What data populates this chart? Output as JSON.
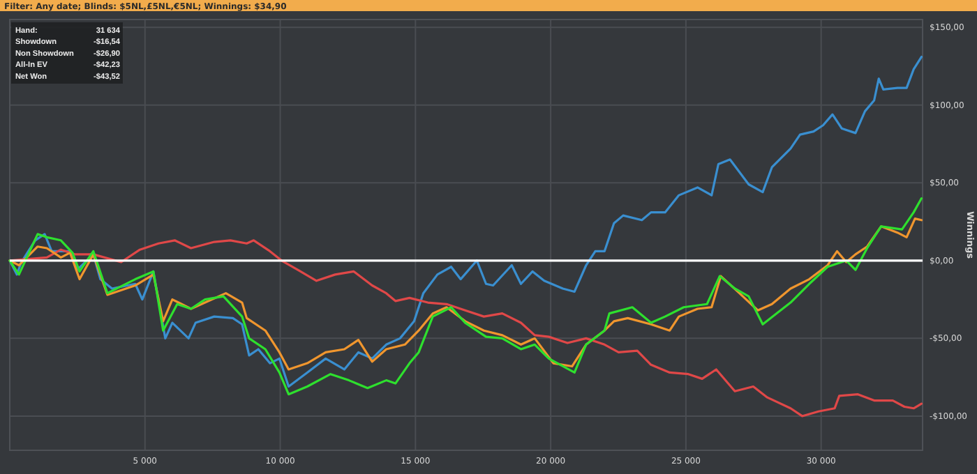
{
  "chart_data": {
    "type": "line",
    "title": "Filter: Any date; Blinds: $5NL,£5NL,€5NL; Winnings: $34,90",
    "ylabel": "Winnings",
    "annotations": [
      "Hand:",
      "31 634",
      "Showdown",
      "-$16,54",
      "Non Showdown",
      "-$26,90",
      "All-In EV",
      "-$42,23",
      "Net Won",
      "-$43,52"
    ],
    "xlim": [
      0,
      33750
    ],
    "ylim": [
      -122,
      155
    ],
    "xticks": [
      {
        "value": 5000,
        "label": "5 000"
      },
      {
        "value": 10000,
        "label": "10 000"
      },
      {
        "value": 15000,
        "label": "15 000"
      },
      {
        "value": 20000,
        "label": "20 000"
      },
      {
        "value": 25000,
        "label": "25 000"
      },
      {
        "value": 30000,
        "label": "30 000"
      }
    ],
    "yticks": [
      {
        "value": -100,
        "label": "-$100,00"
      },
      {
        "value": -50,
        "label": "-$50,00"
      },
      {
        "value": 0,
        "label": "$0,00"
      },
      {
        "value": 50,
        "label": "$50,00"
      },
      {
        "value": 100,
        "label": "$100,00"
      },
      {
        "value": 150,
        "label": "$150,00"
      }
    ],
    "grid": true,
    "ref_lines": [
      {
        "axis": "y",
        "value": 0,
        "label": null,
        "color": "#ffffff"
      }
    ],
    "series": [
      {
        "color": "#3a8fd0",
        "x": [
          0,
          260,
          430,
          940,
          1290,
          1550,
          2230,
          2490,
          3090,
          3350,
          3780,
          4640,
          4900,
          5310,
          5750,
          6010,
          6610,
          6870,
          7560,
          8250,
          8590,
          8850,
          9190,
          9620,
          9970,
          10310,
          11000,
          11680,
          12370,
          12890,
          13400,
          13920,
          14430,
          14950,
          15290,
          15810,
          16320,
          16670,
          17270,
          17610,
          17870,
          18560,
          18900,
          19330,
          19760,
          20450,
          20880,
          21310,
          21650,
          21990,
          22340,
          22680,
          23370,
          23710,
          24230,
          24740,
          25430,
          25950,
          26200,
          26630,
          27320,
          27840,
          28180,
          28870,
          29220,
          29720,
          30070,
          30420,
          30760,
          31270,
          31620,
          31960,
          32130,
          32300,
          32820,
          33160,
          33420,
          33710
        ],
        "values": [
          0,
          -9,
          -1,
          13,
          17,
          6,
          6,
          -6,
          4,
          -12,
          -18,
          -15,
          -25,
          -7,
          -50,
          -40,
          -50,
          -40,
          -36,
          -37,
          -41,
          -61,
          -57,
          -66,
          -63,
          -81,
          -72,
          -63,
          -70,
          -59,
          -63,
          -54,
          -50,
          -39,
          -21,
          -9,
          -4,
          -12,
          0,
          -15,
          -16,
          -3,
          -15,
          -7,
          -13,
          -18,
          -20,
          -3,
          6,
          6,
          24,
          29,
          26,
          31,
          31,
          42,
          47,
          42,
          62,
          65,
          49,
          44,
          60,
          72,
          81,
          83,
          87,
          94,
          85,
          82,
          96,
          103,
          117,
          110,
          111,
          111,
          123,
          131
        ]
      },
      {
        "color": "#e04848",
        "x": [
          0,
          690,
          1370,
          1890,
          2400,
          3090,
          4120,
          4810,
          5500,
          6100,
          6700,
          7560,
          8160,
          8760,
          9020,
          9620,
          10050,
          10650,
          11340,
          12030,
          12720,
          13400,
          13920,
          14260,
          14780,
          15460,
          16150,
          16840,
          17530,
          17870,
          18210,
          18900,
          19410,
          19930,
          20620,
          21310,
          21990,
          22510,
          23200,
          23710,
          24400,
          25090,
          25600,
          26120,
          26810,
          27490,
          28010,
          28870,
          29300,
          29900,
          30500,
          30670,
          31360,
          31960,
          32650,
          33080,
          33420,
          33710
        ],
        "values": [
          0,
          1,
          2,
          7,
          4,
          4,
          -1,
          7,
          11,
          13,
          8,
          12,
          13,
          11,
          13,
          6,
          0,
          -6,
          -13,
          -9,
          -7,
          -16,
          -21,
          -26,
          -24,
          -27,
          -28,
          -32,
          -36,
          -35,
          -34,
          -40,
          -48,
          -49,
          -53,
          -50,
          -54,
          -59,
          -58,
          -67,
          -72,
          -73,
          -76,
          -70,
          -84,
          -81,
          -88,
          -95,
          -100,
          -97,
          -95,
          -87,
          -86,
          -90,
          -90,
          -94,
          -95,
          -92
        ]
      },
      {
        "color": "#f0962e",
        "x": [
          0,
          340,
          1030,
          1370,
          1890,
          2230,
          2580,
          3090,
          3610,
          4640,
          5310,
          5670,
          6010,
          6700,
          7220,
          7990,
          8590,
          8760,
          9450,
          9970,
          10310,
          11000,
          11680,
          12370,
          12890,
          13400,
          13920,
          14610,
          15120,
          15640,
          16150,
          16840,
          17530,
          18210,
          18900,
          19410,
          20100,
          20790,
          21310,
          21990,
          22340,
          22850,
          23710,
          24400,
          24740,
          25430,
          25950,
          26290,
          26980,
          27660,
          28180,
          28870,
          29560,
          30240,
          30590,
          30930,
          31270,
          31700,
          32220,
          32820,
          33160,
          33470,
          33710
        ],
        "values": [
          0,
          -3,
          9,
          8,
          2,
          5,
          -12,
          4,
          -22,
          -16,
          -9,
          -39,
          -25,
          -31,
          -27,
          -21,
          -27,
          -37,
          -45,
          -59,
          -70,
          -66,
          -59,
          -57,
          -51,
          -65,
          -57,
          -54,
          -45,
          -34,
          -30,
          -39,
          -45,
          -48,
          -54,
          -50,
          -66,
          -68,
          -54,
          -45,
          -39,
          -37,
          -41,
          -45,
          -36,
          -31,
          -30,
          -10,
          -21,
          -32,
          -28,
          -18,
          -12,
          -3,
          6,
          -1,
          4,
          9,
          22,
          18,
          15,
          27,
          26
        ]
      },
      {
        "color": "#2ee02e",
        "x": [
          0,
          340,
          1030,
          1370,
          1890,
          2320,
          2580,
          3090,
          3610,
          4640,
          5310,
          5670,
          6190,
          6700,
          7220,
          7900,
          8590,
          8850,
          9450,
          9970,
          10310,
          11000,
          11860,
          12540,
          13230,
          13920,
          14260,
          14780,
          15120,
          15640,
          16320,
          16840,
          17610,
          18210,
          18900,
          19410,
          19930,
          20880,
          21310,
          21990,
          22170,
          23020,
          23710,
          24230,
          24920,
          25780,
          26250,
          26810,
          27320,
          27840,
          28350,
          28870,
          29560,
          30240,
          30930,
          31270,
          31700,
          32220,
          32990,
          33420,
          33710
        ],
        "values": [
          0,
          -9,
          17,
          15,
          13,
          5,
          -7,
          6,
          -21,
          -12,
          -7,
          -45,
          -28,
          -31,
          -25,
          -23,
          -36,
          -50,
          -57,
          -72,
          -86,
          -81,
          -73,
          -77,
          -82,
          -77,
          -79,
          -66,
          -59,
          -36,
          -30,
          -40,
          -49,
          -50,
          -57,
          -54,
          -63,
          -72,
          -54,
          -45,
          -34,
          -30,
          -40,
          -36,
          -30,
          -28,
          -10,
          -18,
          -23,
          -41,
          -34,
          -27,
          -15,
          -4,
          0,
          -6,
          8,
          22,
          20,
          31,
          40
        ]
      }
    ]
  }
}
